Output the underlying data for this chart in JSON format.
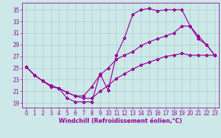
{
  "background_color": "#cce8e8",
  "grid_color": "#aacccc",
  "line_color": "#990099",
  "marker": "D",
  "marker_size": 2.0,
  "line_width": 0.9,
  "xlabel": "Windchill (Refroidissement éolien,°C)",
  "xlabel_fontsize": 6.0,
  "tick_fontsize": 5.5,
  "yticks": [
    19,
    21,
    23,
    25,
    27,
    29,
    31,
    33,
    35
  ],
  "xticks": [
    0,
    1,
    2,
    3,
    4,
    5,
    6,
    7,
    8,
    9,
    10,
    11,
    12,
    13,
    14,
    15,
    16,
    17,
    18,
    19,
    20,
    21,
    22,
    23
  ],
  "xlim": [
    -0.5,
    23.5
  ],
  "ylim": [
    18.2,
    36.2
  ],
  "line1_x": [
    0,
    1,
    2,
    3,
    4,
    5,
    6,
    7,
    8,
    9,
    10,
    11,
    12,
    13,
    14,
    15,
    16,
    17,
    18,
    19,
    20,
    21,
    22,
    23
  ],
  "line1_y": [
    25.2,
    23.8,
    22.8,
    21.8,
    21.5,
    19.8,
    19.2,
    19.2,
    19.2,
    24.0,
    21.2,
    27.2,
    30.2,
    34.2,
    35.0,
    35.2,
    34.8,
    35.0,
    35.0,
    35.0,
    32.2,
    30.0,
    29.0,
    27.2
  ],
  "line2_x": [
    0,
    1,
    2,
    3,
    4,
    5,
    6,
    7,
    8,
    9,
    10,
    11,
    12,
    13,
    14,
    15,
    16,
    17,
    18,
    19,
    20,
    21,
    22,
    23
  ],
  "line2_y": [
    25.2,
    23.8,
    22.8,
    22.0,
    21.5,
    20.8,
    20.2,
    19.8,
    19.8,
    21.0,
    22.0,
    23.2,
    24.0,
    24.8,
    25.5,
    26.0,
    26.5,
    27.0,
    27.2,
    27.5,
    27.2,
    27.2,
    27.2,
    27.2
  ],
  "line3_x": [
    0,
    1,
    2,
    3,
    4,
    5,
    6,
    7,
    8,
    9,
    10,
    11,
    12,
    13,
    14,
    15,
    16,
    17,
    18,
    19,
    20,
    21,
    22,
    23
  ],
  "line3_y": [
    25.2,
    23.8,
    22.8,
    22.0,
    21.5,
    20.8,
    20.2,
    20.2,
    21.8,
    23.8,
    25.0,
    26.5,
    27.2,
    27.8,
    28.8,
    29.5,
    30.0,
    30.5,
    31.0,
    32.2,
    32.2,
    30.5,
    29.0,
    27.2
  ]
}
